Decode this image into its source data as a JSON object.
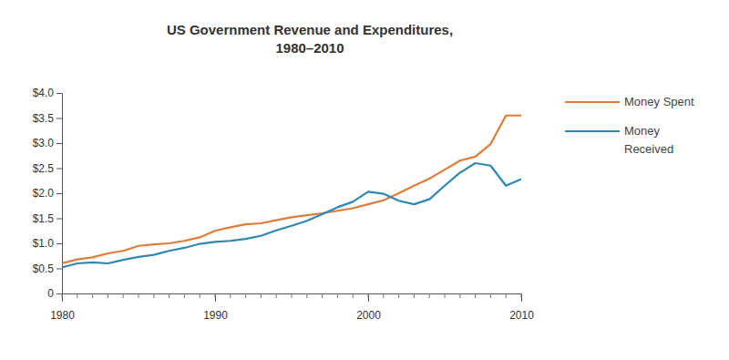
{
  "chart_data": {
    "type": "line",
    "title": "US Government Revenue and Expenditures,\n1980–2010",
    "x": [
      1980,
      1981,
      1982,
      1983,
      1984,
      1985,
      1986,
      1987,
      1988,
      1989,
      1990,
      1991,
      1992,
      1993,
      1994,
      1995,
      1996,
      1997,
      1998,
      1999,
      2000,
      2001,
      2002,
      2003,
      2004,
      2005,
      2006,
      2007,
      2008,
      2009,
      2010
    ],
    "series": [
      {
        "name": "Money Spent",
        "color": "#e07b39",
        "values": [
          0.6,
          0.68,
          0.72,
          0.8,
          0.85,
          0.95,
          0.98,
          1.0,
          1.05,
          1.12,
          1.25,
          1.32,
          1.38,
          1.4,
          1.46,
          1.52,
          1.56,
          1.6,
          1.65,
          1.7,
          1.78,
          1.86,
          2.0,
          2.15,
          2.29,
          2.47,
          2.65,
          2.73,
          2.98,
          3.55,
          3.55
        ]
      },
      {
        "name": "Money Received",
        "color": "#2f87b5",
        "values": [
          0.52,
          0.6,
          0.62,
          0.6,
          0.67,
          0.73,
          0.77,
          0.85,
          0.91,
          0.99,
          1.03,
          1.05,
          1.09,
          1.15,
          1.26,
          1.35,
          1.45,
          1.58,
          1.72,
          1.83,
          2.03,
          1.99,
          1.85,
          1.78,
          1.88,
          2.15,
          2.41,
          2.6,
          2.55,
          2.15,
          2.28
        ]
      }
    ],
    "xlim": [
      1980,
      2010
    ],
    "xticks": [
      1980,
      1990,
      2000,
      2010
    ],
    "ylim": [
      0,
      4
    ],
    "yticks": [
      0,
      {
        "value": 0.5,
        "label": "$0.5"
      },
      {
        "value": 1.0,
        "label": "$1.0"
      },
      {
        "value": 1.5,
        "label": "$1.5"
      },
      {
        "value": 2.0,
        "label": "$2.0"
      },
      {
        "value": 2.5,
        "label": "$2.5"
      },
      {
        "value": 3.0,
        "label": "$3.0"
      },
      {
        "value": 3.5,
        "label": "$3.5"
      },
      {
        "value": 4.0,
        "label": "$4.0"
      }
    ],
    "grid": false,
    "legend": "right"
  }
}
